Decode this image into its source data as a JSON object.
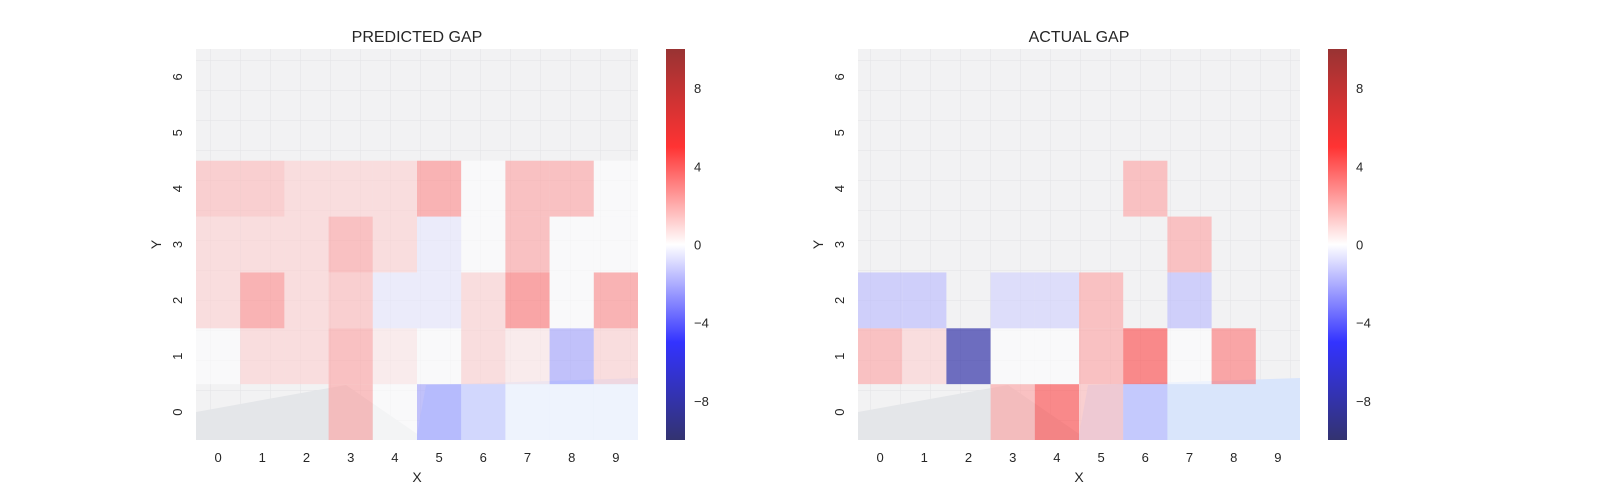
{
  "chart_data": [
    {
      "type": "heatmap",
      "title": "PREDICTED GAP",
      "xlabel": "X",
      "ylabel": "Y",
      "x_ticks": [
        "0",
        "1",
        "2",
        "3",
        "4",
        "5",
        "6",
        "7",
        "8",
        "9"
      ],
      "y_ticks": [
        "0",
        "1",
        "2",
        "3",
        "4",
        "5",
        "6"
      ],
      "colorbar": {
        "range": [
          -10,
          10
        ],
        "ticks": [
          "8",
          "4",
          "0",
          "−4",
          "−8"
        ],
        "tick_values": [
          8,
          4,
          0,
          -4,
          -8
        ],
        "colormap": "seismic"
      },
      "background": "faded street map",
      "grid": [
        [
          null,
          null,
          null,
          2,
          0,
          -2,
          -1,
          0,
          0,
          0
        ],
        [
          0,
          1,
          1,
          2,
          0.5,
          0,
          1,
          0.5,
          -2,
          1
        ],
        [
          1,
          2.5,
          1,
          1.5,
          -0.5,
          -0.5,
          1,
          3,
          0,
          2.5
        ],
        [
          1,
          1,
          1,
          2,
          1,
          -0.5,
          0,
          2,
          0,
          0
        ],
        [
          1.5,
          1.5,
          1,
          1,
          1,
          2.5,
          0,
          2,
          2,
          0
        ],
        [
          null,
          null,
          null,
          null,
          null,
          null,
          null,
          null,
          null,
          null
        ],
        [
          null,
          null,
          null,
          null,
          null,
          null,
          null,
          null,
          null,
          null
        ]
      ]
    },
    {
      "type": "heatmap",
      "title": "ACTUAL GAP",
      "xlabel": "X",
      "ylabel": "Y",
      "x_ticks": [
        "0",
        "1",
        "2",
        "3",
        "4",
        "5",
        "6",
        "7",
        "8",
        "9"
      ],
      "y_ticks": [
        "0",
        "1",
        "2",
        "3",
        "4",
        "5",
        "6"
      ],
      "colorbar": {
        "range": [
          -10,
          10
        ],
        "ticks": [
          "8",
          "4",
          "0",
          "−4",
          "−8"
        ],
        "tick_values": [
          8,
          4,
          0,
          -4,
          -8
        ],
        "colormap": "seismic"
      },
      "background": "faded street map",
      "grid": [
        [
          null,
          null,
          null,
          2,
          4,
          1.5,
          -1.5,
          null,
          null,
          null
        ],
        [
          2,
          1,
          -8,
          0,
          0,
          2,
          4,
          0,
          3,
          null
        ],
        [
          -1.5,
          -1.5,
          null,
          -1,
          -1,
          2,
          null,
          -1.5,
          null,
          null
        ],
        [
          null,
          null,
          null,
          null,
          null,
          null,
          null,
          2,
          null,
          null
        ],
        [
          null,
          null,
          null,
          null,
          null,
          null,
          2,
          null,
          null,
          null
        ],
        [
          null,
          null,
          null,
          null,
          null,
          null,
          null,
          null,
          null,
          null
        ],
        [
          null,
          null,
          null,
          null,
          null,
          null,
          null,
          null,
          null,
          null
        ]
      ]
    }
  ]
}
